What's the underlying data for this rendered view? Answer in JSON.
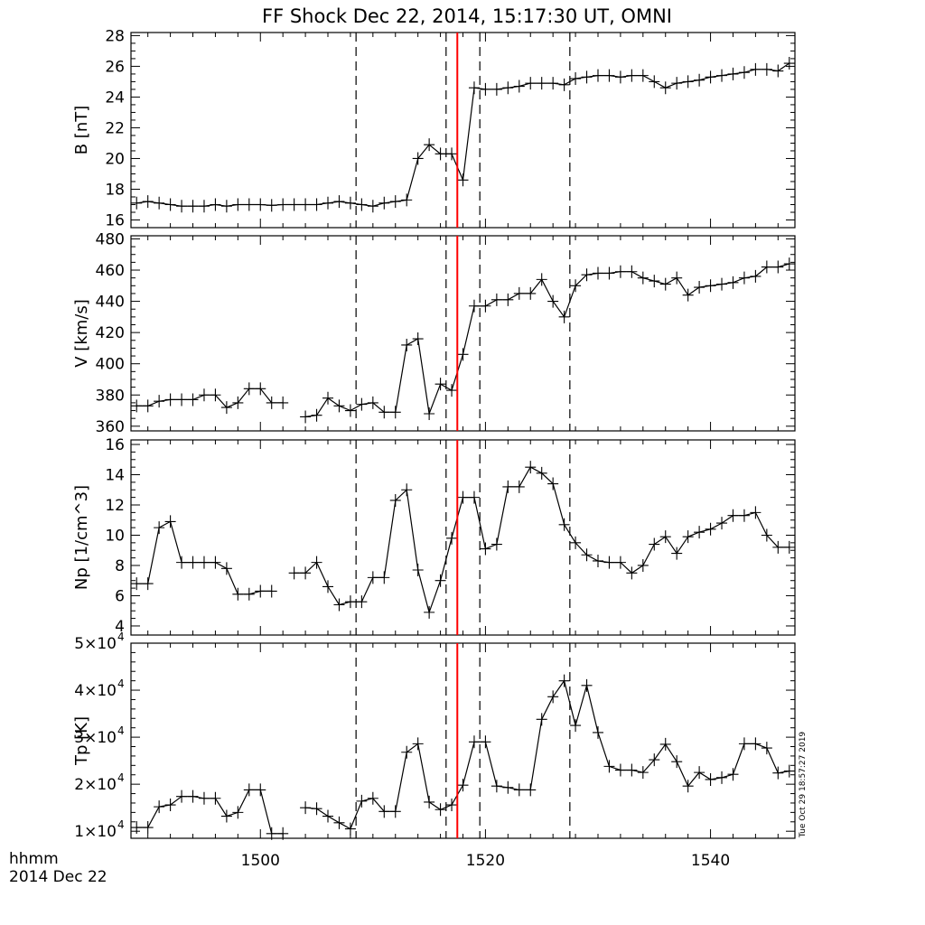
{
  "title": "FF Shock Dec 22, 2014, 15:17:30 UT, OMNI",
  "footer": {
    "line1": "hhmm",
    "line2": "2014 Dec 22"
  },
  "timestamp": "Tue Oct 29 18:57:27 2019",
  "chart_data": [
    {
      "type": "line",
      "ylabel": "B [nT]",
      "ylim": [
        15.5,
        28.2
      ],
      "yticks": [
        16,
        18,
        20,
        22,
        24,
        26,
        28
      ],
      "tick_labels": [
        "16",
        "18",
        "20",
        "22",
        "24",
        "26",
        "28"
      ],
      "x": [
        1489,
        1490,
        1491,
        1492,
        1493,
        1494,
        1495,
        1496,
        1497,
        1498,
        1499,
        1500,
        1501,
        1502,
        1503,
        1504,
        1505,
        1506,
        1507,
        1508,
        1509,
        1510,
        1511,
        1512,
        1513,
        1514,
        1515,
        1516,
        1517,
        1518,
        1519,
        1520,
        1521,
        1522,
        1523,
        1524,
        1525,
        1526,
        1527,
        1528,
        1529,
        1530,
        1531,
        1532,
        1533,
        1534,
        1535,
        1536,
        1537,
        1538,
        1539,
        1540,
        1541,
        1542,
        1543,
        1544,
        1545,
        1546,
        1547
      ],
      "y": [
        17.1,
        17.2,
        17.1,
        17.0,
        16.9,
        16.9,
        16.9,
        17.0,
        16.9,
        17.0,
        17.0,
        17.0,
        16.95,
        17.0,
        17.0,
        17.0,
        17.0,
        17.1,
        17.2,
        17.1,
        17.0,
        16.9,
        17.1,
        17.2,
        17.3,
        20.0,
        20.9,
        20.3,
        20.3,
        18.6,
        24.6,
        24.5,
        24.5,
        24.6,
        24.7,
        24.9,
        24.9,
        24.9,
        24.8,
        25.2,
        25.3,
        25.4,
        25.4,
        25.3,
        25.4,
        25.4,
        25.0,
        24.6,
        24.9,
        25.0,
        25.1,
        25.3,
        25.4,
        25.5,
        25.6,
        25.8,
        25.8,
        25.7,
        26.2
      ]
    },
    {
      "type": "line",
      "ylabel": "V [km/s]",
      "ylim": [
        357,
        482
      ],
      "yticks": [
        360,
        380,
        400,
        420,
        440,
        460,
        480
      ],
      "tick_labels": [
        "360",
        "380",
        "400",
        "420",
        "440",
        "460",
        "480"
      ],
      "x": [
        1489,
        1490,
        1491,
        1492,
        1493,
        1494,
        1495,
        1496,
        1497,
        1498,
        1499,
        1500,
        1501,
        1502,
        1503,
        1504,
        1505,
        1506,
        1507,
        1508,
        1509,
        1510,
        1511,
        1512,
        1513,
        1514,
        1515,
        1516,
        1517,
        1518,
        1519,
        1520,
        1521,
        1522,
        1523,
        1524,
        1525,
        1526,
        1527,
        1528,
        1529,
        1530,
        1531,
        1532,
        1533,
        1534,
        1535,
        1536,
        1537,
        1538,
        1539,
        1540,
        1541,
        1542,
        1543,
        1544,
        1545,
        1546,
        1547
      ],
      "y": [
        373,
        373,
        376,
        377,
        377,
        377,
        380,
        380,
        372,
        375,
        384,
        384,
        375,
        375,
        null,
        366,
        367,
        378,
        373,
        370,
        374,
        375,
        369,
        369,
        412,
        416,
        368,
        387,
        383,
        406,
        437,
        437,
        441,
        441,
        445,
        445,
        454,
        440,
        430,
        450,
        457,
        458,
        458,
        459,
        459,
        455,
        453,
        451,
        455,
        444,
        449,
        450,
        451,
        452,
        455,
        456,
        462,
        462,
        464
      ]
    },
    {
      "type": "line",
      "ylabel": "Np [1/cm^3]",
      "ylim": [
        3.4,
        16.3
      ],
      "yticks": [
        4,
        6,
        8,
        10,
        12,
        14,
        16
      ],
      "tick_labels": [
        "4",
        "6",
        "8",
        "10",
        "12",
        "14",
        "16"
      ],
      "x": [
        1489,
        1490,
        1491,
        1492,
        1493,
        1494,
        1495,
        1496,
        1497,
        1498,
        1499,
        1500,
        1501,
        1502,
        1503,
        1504,
        1505,
        1506,
        1507,
        1508,
        1509,
        1510,
        1511,
        1512,
        1513,
        1514,
        1515,
        1516,
        1517,
        1518,
        1519,
        1520,
        1521,
        1522,
        1523,
        1524,
        1525,
        1526,
        1527,
        1528,
        1529,
        1530,
        1531,
        1532,
        1533,
        1534,
        1535,
        1536,
        1537,
        1538,
        1539,
        1540,
        1541,
        1542,
        1543,
        1544,
        1545,
        1546,
        1547
      ],
      "y": [
        6.8,
        6.8,
        10.5,
        10.9,
        8.2,
        8.2,
        8.2,
        8.2,
        7.8,
        6.1,
        6.1,
        6.3,
        6.3,
        null,
        7.5,
        7.5,
        8.2,
        6.6,
        5.4,
        5.6,
        5.6,
        7.2,
        7.2,
        12.3,
        13.0,
        7.7,
        4.9,
        7.0,
        9.8,
        12.5,
        12.5,
        9.1,
        9.4,
        13.2,
        13.2,
        14.5,
        14.1,
        13.4,
        10.7,
        9.5,
        8.7,
        8.3,
        8.2,
        8.2,
        7.5,
        8.0,
        9.4,
        9.9,
        8.8,
        9.9,
        10.2,
        10.4,
        10.8,
        11.3,
        11.3,
        11.5,
        10.0,
        9.2,
        9.2
      ]
    },
    {
      "type": "line",
      "ylabel": "Tp [K]",
      "ylim": [
        8500,
        50000
      ],
      "yticks": [
        10000,
        20000,
        30000,
        40000,
        50000
      ],
      "tick_labels": [
        {
          "mantissa": "1×10",
          "exp": "4"
        },
        {
          "mantissa": "2×10",
          "exp": "4"
        },
        {
          "mantissa": "3×10",
          "exp": "4"
        },
        {
          "mantissa": "4×10",
          "exp": "4"
        },
        {
          "mantissa": "5×10",
          "exp": "4"
        }
      ],
      "x": [
        1489,
        1490,
        1491,
        1492,
        1493,
        1494,
        1495,
        1496,
        1497,
        1498,
        1499,
        1500,
        1501,
        1502,
        1503,
        1504,
        1505,
        1506,
        1507,
        1508,
        1509,
        1510,
        1511,
        1512,
        1513,
        1514,
        1515,
        1516,
        1517,
        1518,
        1519,
        1520,
        1521,
        1522,
        1523,
        1524,
        1525,
        1526,
        1527,
        1528,
        1529,
        1530,
        1531,
        1532,
        1533,
        1534,
        1535,
        1536,
        1537,
        1538,
        1539,
        1540,
        1541,
        1542,
        1543,
        1544,
        1545,
        1546,
        1547
      ],
      "y": [
        10800,
        10800,
        15200,
        15600,
        17400,
        17400,
        17000,
        17000,
        13200,
        14000,
        18800,
        18800,
        9500,
        9500,
        null,
        15000,
        14800,
        13200,
        11800,
        10500,
        16400,
        17000,
        14200,
        14200,
        26800,
        28600,
        16200,
        14600,
        15600,
        19800,
        29000,
        29000,
        19600,
        19300,
        18800,
        18800,
        33800,
        38600,
        42000,
        32500,
        41000,
        31000,
        23800,
        23000,
        23000,
        22500,
        25200,
        28500,
        24800,
        19600,
        22500,
        21000,
        21400,
        22100,
        28600,
        28600,
        27700,
        22400,
        22800
      ]
    }
  ],
  "reference_lines": {
    "shock_time": 1517.5,
    "shock_color": "#ff0000",
    "dashed_times": [
      1508.5,
      1516.5,
      1519.5,
      1527.5
    ]
  },
  "xaxis": {
    "xlim": [
      1488.5,
      1547.5
    ],
    "major_ticks": [
      1500,
      1520,
      1540
    ],
    "major_labels": [
      "1500",
      "1520",
      "1540"
    ]
  }
}
